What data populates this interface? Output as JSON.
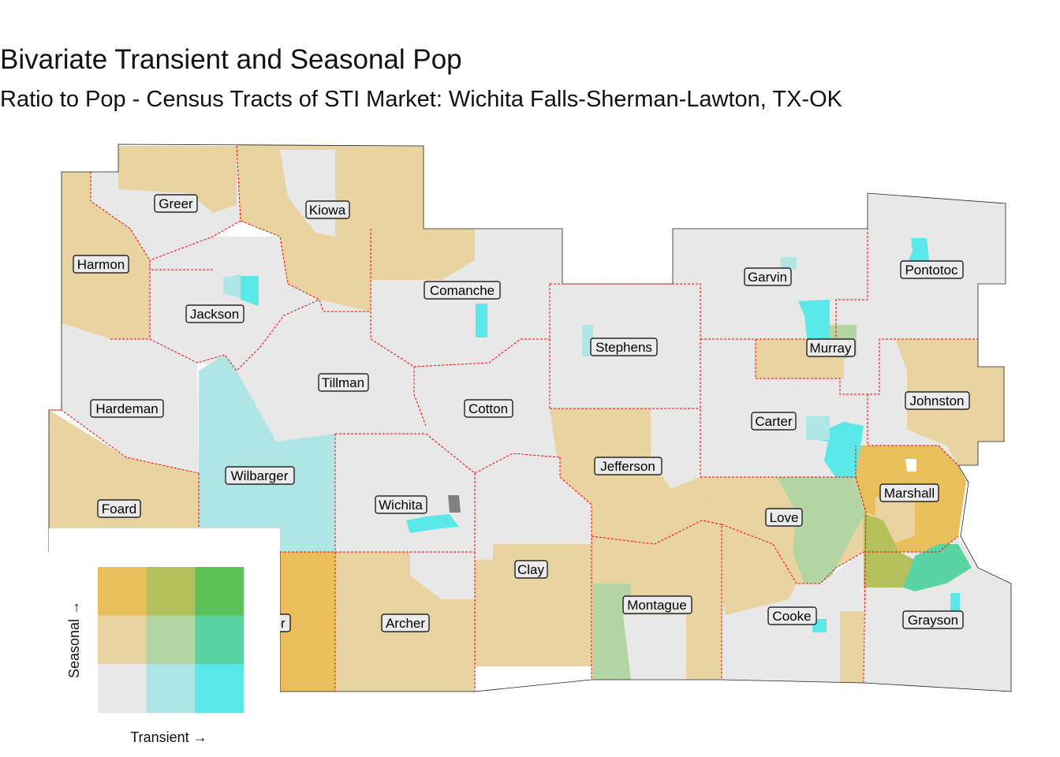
{
  "title": "Bivariate Transient and Seasonal Pop",
  "subtitle": "Ratio to Pop - Census Tracts of STI Market: Wichita Falls-Sherman-Lawton, TX-OK",
  "counties": [
    {
      "id": "greer",
      "name": "Greer"
    },
    {
      "id": "kiowa",
      "name": "Kiowa"
    },
    {
      "id": "harmon",
      "name": "Harmon"
    },
    {
      "id": "jackson",
      "name": "Jackson"
    },
    {
      "id": "comanche",
      "name": "Comanche"
    },
    {
      "id": "garvin",
      "name": "Garvin"
    },
    {
      "id": "pontotoc",
      "name": "Pontotoc"
    },
    {
      "id": "stephens",
      "name": "Stephens"
    },
    {
      "id": "murray",
      "name": "Murray"
    },
    {
      "id": "tillman",
      "name": "Tillman"
    },
    {
      "id": "hardeman",
      "name": "Hardeman"
    },
    {
      "id": "cotton",
      "name": "Cotton"
    },
    {
      "id": "johnston",
      "name": "Johnston"
    },
    {
      "id": "carter",
      "name": "Carter"
    },
    {
      "id": "jefferson",
      "name": "Jefferson"
    },
    {
      "id": "wilbarger",
      "name": "Wilbarger"
    },
    {
      "id": "marshall",
      "name": "Marshall"
    },
    {
      "id": "foard",
      "name": "Foard"
    },
    {
      "id": "wichita",
      "name": "Wichita"
    },
    {
      "id": "love",
      "name": "Love"
    },
    {
      "id": "clay",
      "name": "Clay"
    },
    {
      "id": "montague",
      "name": "Montague"
    },
    {
      "id": "cooke",
      "name": "Cooke"
    },
    {
      "id": "archer",
      "name": "Archer"
    },
    {
      "id": "grayson",
      "name": "Grayson"
    },
    {
      "id": "baylor",
      "name": "or"
    }
  ],
  "legend": {
    "x_label": "Transient →",
    "y_label": "Seasonal →",
    "colors": [
      [
        "#e8bf5a",
        "#b3c05c",
        "#5bc25a"
      ],
      [
        "#e9d3a0",
        "#b3d4a3",
        "#5ad3a3"
      ],
      [
        "#e8e8e8",
        "#b0e5e5",
        "#5ae8e8"
      ]
    ]
  },
  "palette": {
    "low": "#e8e8e8",
    "seasonal_mid": "#e9d3a0",
    "seasonal_high": "#e8bf5a",
    "transient_mid": "#b0e5e5",
    "transient_high": "#5ae8e8",
    "mid_mid": "#b3d4a3",
    "high_mid": "#5ad3a3",
    "mid_high": "#b3c05c",
    "missing": "#808080",
    "border": "#ff0000"
  }
}
